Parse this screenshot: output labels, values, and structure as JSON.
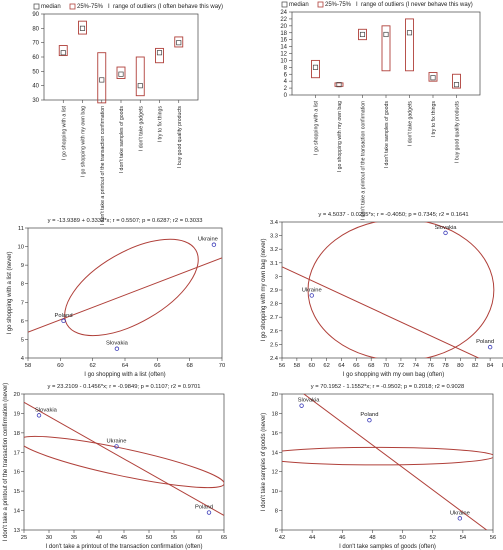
{
  "colors": {
    "series": "#b0403a",
    "axis": "#444444",
    "point": "#3a3ab8",
    "text": "#222222"
  },
  "chart_data": [
    {
      "type": "box",
      "legend_items": [
        "median",
        "25%-75%",
        "range of outliers (I often behave this way)"
      ],
      "legend_position": "top",
      "grid": false,
      "ylim": [
        30,
        90
      ],
      "yticks": [
        30,
        40,
        50,
        60,
        70,
        80,
        90
      ],
      "categories": [
        "I go shopping with a list",
        "I go shopping with my own bag",
        "I don't take a printout of the transaction confirmation",
        "I don't take samples of goods",
        "I don't take gadgets",
        "I try to fix things",
        "I buy good quality products"
      ],
      "median": [
        63,
        80,
        44,
        48,
        40,
        63,
        70
      ],
      "q1": [
        61,
        76,
        28,
        45,
        33,
        56,
        67
      ],
      "q3": [
        68,
        85,
        63,
        53,
        60,
        66,
        74
      ]
    },
    {
      "type": "box",
      "legend_items": [
        "median",
        "25%-75%",
        "range of outliers (I never behave this way)"
      ],
      "legend_position": "top",
      "grid": false,
      "ylim": [
        0,
        24
      ],
      "yticks": [
        0,
        2,
        4,
        6,
        8,
        10,
        12,
        14,
        16,
        18,
        20,
        22,
        24
      ],
      "categories": [
        "I go shopping with a list",
        "I go shopping with my own bag",
        "I don't take a printout of the transaction confirmation",
        "I don't take samples of goods",
        "I don't take gadgets",
        "I try to fix things",
        "I buy good quality products"
      ],
      "median": [
        8,
        3,
        17.5,
        17.5,
        18,
        5,
        3
      ],
      "q1": [
        5,
        2.5,
        16,
        7,
        7,
        4,
        2
      ],
      "q3": [
        10,
        3.5,
        19,
        20,
        22,
        6.5,
        6
      ]
    },
    {
      "type": "scatter",
      "title": "y = -13.9389 + 0.3332*x; r = 0.5507; p = 0.6287; r2 = 0.3033",
      "xlabel": "I go shopping with a list (often)",
      "ylabel": "I go shopping with a list (never)",
      "xlim": [
        58,
        70
      ],
      "ylim": [
        4,
        11
      ],
      "xticks": [
        58,
        60,
        62,
        64,
        66,
        68,
        70
      ],
      "yticks": [
        4,
        5,
        6,
        7,
        8,
        9,
        10,
        11
      ],
      "points": [
        {
          "label": "Poland",
          "x": 60.2,
          "y": 6.0
        },
        {
          "label": "Slovakia",
          "x": 63.5,
          "y": 4.5
        },
        {
          "label": "Ukraine",
          "x": 69.5,
          "y": 10.1
        }
      ],
      "line": [
        [
          58,
          5.39
        ],
        [
          70,
          9.39
        ]
      ],
      "ellipse": {
        "cx": 64.4,
        "cy": 7.8,
        "rx": 4.6,
        "ry": 1.9,
        "angle": 30
      }
    },
    {
      "type": "scatter",
      "title": "y = 4.5037 - 0.0255*x; r = -0.4050; p = 0.7345; r2 = 0.1641",
      "xlabel": "I go shopping with my own bag (often)",
      "ylabel": "I go shopping with my own bag (never)",
      "xlim": [
        56,
        86
      ],
      "ylim": [
        2.4,
        3.4
      ],
      "xticks": [
        56,
        58,
        60,
        62,
        64,
        66,
        68,
        70,
        72,
        74,
        76,
        78,
        80,
        82,
        84,
        86
      ],
      "yticks": [
        2.4,
        2.5,
        2.6,
        2.7,
        2.8,
        2.9,
        3.0,
        3.1,
        3.2,
        3.3,
        3.4
      ],
      "points": [
        {
          "label": "Ukraine",
          "x": 60,
          "y": 2.86
        },
        {
          "label": "Slovakia",
          "x": 78,
          "y": 3.32
        },
        {
          "label": "Poland",
          "x": 84,
          "y": 2.48
        }
      ],
      "line": [
        [
          56,
          3.07
        ],
        [
          86,
          2.31
        ]
      ],
      "ellipse": {
        "cx": 72,
        "cy": 2.9,
        "rx": 12.5,
        "ry": 0.52,
        "angle": 0
      }
    },
    {
      "type": "scatter",
      "title": "y = 23.2109 - 0.1456*x; r = -0.9849; p = 0.1107; r2 = 0.9701",
      "xlabel": "I don't take a printout of the transaction confirmation (often)",
      "ylabel": "I don't take a printout of the transaction confirmation (never)",
      "xlim": [
        25,
        65
      ],
      "ylim": [
        13,
        20
      ],
      "xticks": [
        25,
        30,
        35,
        40,
        45,
        50,
        55,
        60,
        65
      ],
      "yticks": [
        13,
        14,
        15,
        16,
        17,
        18,
        19,
        20
      ],
      "points": [
        {
          "label": "Slovakia",
          "x": 28,
          "y": 18.9
        },
        {
          "label": "Ukraine",
          "x": 43.5,
          "y": 17.3
        },
        {
          "label": "Poland",
          "x": 62,
          "y": 13.9
        }
      ],
      "line": [
        [
          25,
          19.57
        ],
        [
          65,
          13.75
        ]
      ],
      "ellipse": {
        "cx": 44.5,
        "cy": 16.5,
        "rx": 21,
        "ry": 0.7,
        "angle": -12
      }
    },
    {
      "type": "scatter",
      "title": "y = 70.1952 - 1.1552*x; r = -0.9502; p = 0.2018; r2 = 0.9028",
      "xlabel": "I don't take samples of goods (often)",
      "ylabel": "I don't take samples of goods (never)",
      "xlim": [
        42,
        56
      ],
      "ylim": [
        6,
        20
      ],
      "xticks": [
        42,
        44,
        46,
        48,
        50,
        52,
        54,
        56
      ],
      "yticks": [
        6,
        8,
        10,
        12,
        14,
        16,
        18,
        20
      ],
      "points": [
        {
          "label": "Slovakia",
          "x": 43.3,
          "y": 18.8
        },
        {
          "label": "Poland",
          "x": 47.8,
          "y": 17.3
        },
        {
          "label": "Ukraine",
          "x": 53.8,
          "y": 7.2
        }
      ],
      "line": [
        [
          42,
          21.68
        ],
        [
          56,
          5.51
        ]
      ],
      "ellipse": {
        "cx": 48.3,
        "cy": 13.6,
        "rx": 7.8,
        "ry": 0.9,
        "angle": 0
      }
    }
  ]
}
